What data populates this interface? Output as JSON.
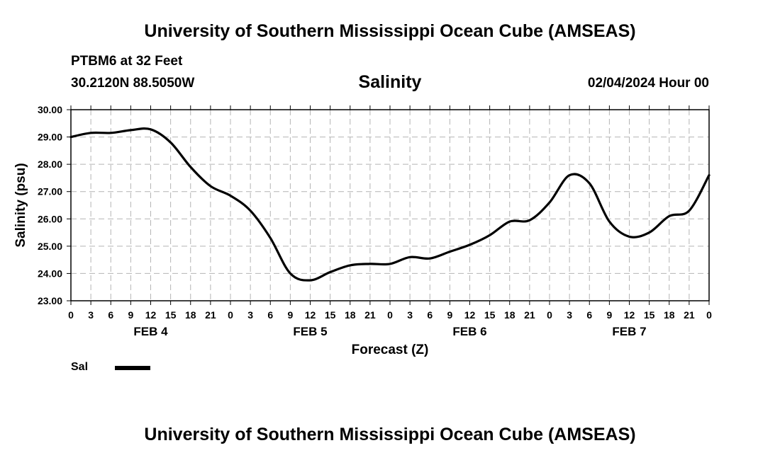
{
  "header": {
    "title": "University of Southern Mississippi Ocean Cube (AMSEAS)",
    "station": "PTBM6 at 32 Feet",
    "location": "30.2120N  88.5050W",
    "datetime": "02/04/2024 Hour 00"
  },
  "footer": {
    "title": "University of Southern Mississippi Ocean Cube (AMSEAS)"
  },
  "legend": {
    "label": "Sal",
    "color": "#000000"
  },
  "chart_data": {
    "type": "line",
    "title": "Salinity",
    "xlabel": "Forecast (Z)",
    "ylabel": "Salinity (psu)",
    "ylim": [
      23.0,
      30.0
    ],
    "xlim": [
      0,
      96
    ],
    "grid": true,
    "y_ticks": [
      "23.00",
      "24.00",
      "25.00",
      "26.00",
      "27.00",
      "28.00",
      "29.00",
      "30.00"
    ],
    "x_ticks": [
      "0",
      "3",
      "6",
      "9",
      "12",
      "15",
      "18",
      "21",
      "0",
      "3",
      "6",
      "9",
      "12",
      "15",
      "18",
      "21",
      "0",
      "3",
      "6",
      "9",
      "12",
      "15",
      "18",
      "21",
      "0",
      "3",
      "6",
      "9",
      "12",
      "15",
      "18",
      "21",
      "0"
    ],
    "day_labels": [
      {
        "label": "FEB 4",
        "hour": 12
      },
      {
        "label": "FEB 5",
        "hour": 36
      },
      {
        "label": "FEB 6",
        "hour": 60
      },
      {
        "label": "FEB 7",
        "hour": 84
      }
    ],
    "series": [
      {
        "name": "Sal",
        "x": [
          0,
          3,
          6,
          9,
          12,
          15,
          18,
          21,
          24,
          27,
          30,
          33,
          36,
          39,
          42,
          45,
          48,
          51,
          54,
          57,
          60,
          63,
          66,
          69,
          72,
          75,
          78,
          81,
          84,
          87,
          90,
          93,
          96
        ],
        "values": [
          29.0,
          29.15,
          29.15,
          29.25,
          29.28,
          28.8,
          27.9,
          27.2,
          26.85,
          26.3,
          25.3,
          24.0,
          23.75,
          24.05,
          24.3,
          24.35,
          24.35,
          24.6,
          24.55,
          24.8,
          25.05,
          25.4,
          25.9,
          25.95,
          26.6,
          27.6,
          27.3,
          25.9,
          25.35,
          25.5,
          26.1,
          26.3,
          27.6
        ]
      }
    ]
  }
}
